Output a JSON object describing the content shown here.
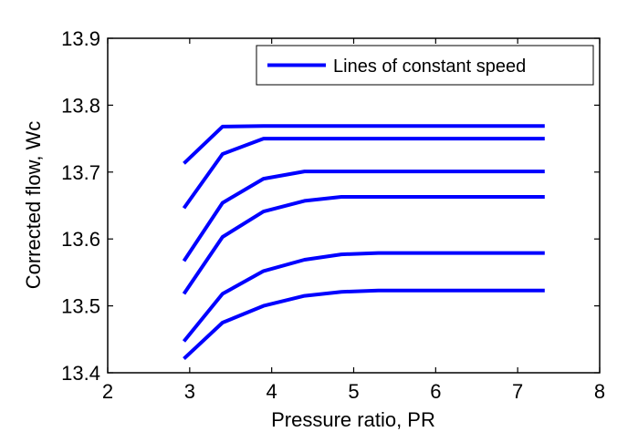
{
  "chart_data": {
    "type": "line",
    "title": "",
    "xlabel": "Pressure ratio, PR",
    "ylabel": "Corrected flow, Wc",
    "xlim": [
      2,
      8
    ],
    "ylim": [
      13.4,
      13.9
    ],
    "xticks": [
      2,
      3,
      4,
      5,
      6,
      7,
      8
    ],
    "yticks": [
      13.4,
      13.5,
      13.6,
      13.7,
      13.8,
      13.9
    ],
    "xtick_labels": [
      "2",
      "3",
      "4",
      "5",
      "6",
      "7",
      "8"
    ],
    "ytick_labels": [
      "13.4",
      "13.5",
      "13.6",
      "13.7",
      "13.8",
      "13.9"
    ],
    "grid": false,
    "legend": {
      "entries": [
        "Lines of constant speed"
      ],
      "placement": "top-right"
    },
    "series_color": "#0000ff",
    "series": [
      {
        "name": "Lines of constant speed",
        "x": [
          2.93,
          3.4,
          3.9,
          4.4,
          4.85,
          5.3,
          7.33
        ],
        "y": [
          13.713,
          13.768,
          13.769,
          13.769,
          13.769,
          13.769,
          13.769
        ]
      },
      {
        "name": "",
        "x": [
          2.93,
          3.4,
          3.9,
          4.4,
          4.85,
          5.3,
          7.33
        ],
        "y": [
          13.646,
          13.727,
          13.75,
          13.75,
          13.75,
          13.75,
          13.75
        ]
      },
      {
        "name": "",
        "x": [
          2.93,
          3.4,
          3.9,
          4.4,
          4.85,
          5.3,
          7.33
        ],
        "y": [
          13.567,
          13.654,
          13.69,
          13.701,
          13.701,
          13.701,
          13.701
        ]
      },
      {
        "name": "",
        "x": [
          2.93,
          3.4,
          3.9,
          4.4,
          4.85,
          5.3,
          7.33
        ],
        "y": [
          13.518,
          13.603,
          13.641,
          13.657,
          13.663,
          13.663,
          13.663
        ]
      },
      {
        "name": "",
        "x": [
          2.93,
          3.4,
          3.9,
          4.4,
          4.85,
          5.3,
          7.33
        ],
        "y": [
          13.447,
          13.518,
          13.552,
          13.569,
          13.577,
          13.579,
          13.579
        ]
      },
      {
        "name": "",
        "x": [
          2.93,
          3.4,
          3.9,
          4.4,
          4.85,
          5.3,
          7.33
        ],
        "y": [
          13.421,
          13.475,
          13.5,
          13.515,
          13.521,
          13.523,
          13.523
        ]
      }
    ]
  }
}
